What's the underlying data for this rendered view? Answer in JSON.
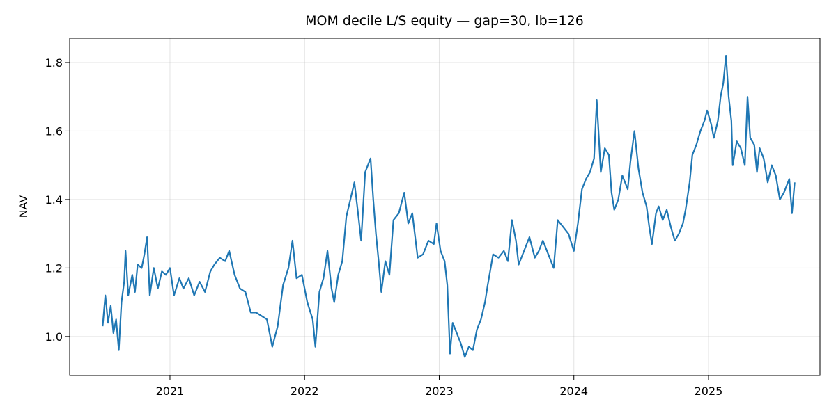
{
  "chart_data": {
    "type": "line",
    "title": "MOM decile L/S equity — gap=30, lb=126",
    "ylabel": "NAV",
    "x": [
      2020.5,
      2020.52,
      2020.54,
      2020.56,
      2020.58,
      2020.6,
      2020.62,
      2020.64,
      2020.66,
      2020.67,
      2020.69,
      2020.72,
      2020.74,
      2020.76,
      2020.79,
      2020.81,
      2020.83,
      2020.85,
      2020.88,
      2020.91,
      2020.94,
      2020.97,
      2021.0,
      2021.03,
      2021.07,
      2021.1,
      2021.14,
      2021.18,
      2021.22,
      2021.26,
      2021.3,
      2021.33,
      2021.37,
      2021.41,
      2021.44,
      2021.48,
      2021.52,
      2021.56,
      2021.6,
      2021.64,
      2021.68,
      2021.72,
      2021.76,
      2021.8,
      2021.84,
      2021.88,
      2021.91,
      2021.94,
      2021.98,
      2022.02,
      2022.06,
      2022.08,
      2022.11,
      2022.14,
      2022.17,
      2022.2,
      2022.22,
      2022.25,
      2022.28,
      2022.31,
      2022.34,
      2022.37,
      2022.4,
      2022.42,
      2022.45,
      2022.49,
      2022.51,
      2022.53,
      2022.55,
      2022.57,
      2022.6,
      2022.63,
      2022.66,
      2022.7,
      2022.74,
      2022.77,
      2022.8,
      2022.84,
      2022.88,
      2022.92,
      2022.96,
      2022.98,
      2023.01,
      2023.04,
      2023.06,
      2023.08,
      2023.1,
      2023.13,
      2023.16,
      2023.19,
      2023.22,
      2023.25,
      2023.28,
      2023.31,
      2023.34,
      2023.36,
      2023.4,
      2023.44,
      2023.48,
      2023.51,
      2023.54,
      2023.57,
      2023.59,
      2023.63,
      2023.67,
      2023.71,
      2023.74,
      2023.77,
      2023.81,
      2023.85,
      2023.88,
      2023.92,
      2023.96,
      2024.0,
      2024.03,
      2024.06,
      2024.09,
      2024.12,
      2024.15,
      2024.17,
      2024.2,
      2024.23,
      2024.26,
      2024.28,
      2024.3,
      2024.33,
      2024.36,
      2024.4,
      2024.42,
      2024.45,
      2024.48,
      2024.51,
      2024.54,
      2024.56,
      2024.58,
      2024.61,
      2024.63,
      2024.66,
      2024.69,
      2024.72,
      2024.75,
      2024.78,
      2024.81,
      2024.83,
      2024.86,
      2024.88,
      2024.91,
      2024.94,
      2024.97,
      2024.99,
      2025.02,
      2025.04,
      2025.07,
      2025.09,
      2025.11,
      2025.13,
      2025.15,
      2025.17,
      2025.18,
      2025.21,
      2025.24,
      2025.27,
      2025.29,
      2025.31,
      2025.34,
      2025.36,
      2025.38,
      2025.41,
      2025.44,
      2025.47,
      2025.5,
      2025.53,
      2025.56,
      2025.6,
      2025.62,
      2025.64
    ],
    "series": [
      {
        "name": "NAV",
        "color": "#1f77b4",
        "values": [
          1.03,
          1.12,
          1.04,
          1.09,
          1.01,
          1.05,
          0.96,
          1.1,
          1.16,
          1.25,
          1.12,
          1.18,
          1.13,
          1.21,
          1.2,
          1.24,
          1.29,
          1.12,
          1.2,
          1.14,
          1.19,
          1.18,
          1.2,
          1.12,
          1.17,
          1.14,
          1.17,
          1.12,
          1.16,
          1.13,
          1.19,
          1.21,
          1.23,
          1.22,
          1.25,
          1.18,
          1.14,
          1.13,
          1.07,
          1.07,
          1.06,
          1.05,
          0.97,
          1.03,
          1.15,
          1.2,
          1.28,
          1.17,
          1.18,
          1.1,
          1.05,
          0.97,
          1.13,
          1.17,
          1.25,
          1.14,
          1.1,
          1.18,
          1.22,
          1.35,
          1.4,
          1.45,
          1.35,
          1.28,
          1.48,
          1.52,
          1.4,
          1.3,
          1.22,
          1.13,
          1.22,
          1.18,
          1.34,
          1.36,
          1.42,
          1.33,
          1.36,
          1.23,
          1.24,
          1.28,
          1.27,
          1.33,
          1.25,
          1.22,
          1.15,
          0.95,
          1.04,
          1.01,
          0.98,
          0.94,
          0.97,
          0.96,
          1.02,
          1.05,
          1.1,
          1.15,
          1.24,
          1.23,
          1.25,
          1.22,
          1.34,
          1.28,
          1.21,
          1.25,
          1.29,
          1.23,
          1.25,
          1.28,
          1.24,
          1.2,
          1.34,
          1.32,
          1.3,
          1.25,
          1.33,
          1.43,
          1.46,
          1.48,
          1.52,
          1.69,
          1.48,
          1.55,
          1.53,
          1.42,
          1.37,
          1.4,
          1.47,
          1.43,
          1.51,
          1.6,
          1.49,
          1.42,
          1.38,
          1.32,
          1.27,
          1.36,
          1.38,
          1.34,
          1.37,
          1.32,
          1.28,
          1.3,
          1.33,
          1.37,
          1.45,
          1.53,
          1.56,
          1.6,
          1.63,
          1.66,
          1.62,
          1.58,
          1.63,
          1.7,
          1.74,
          1.82,
          1.7,
          1.63,
          1.5,
          1.57,
          1.55,
          1.5,
          1.7,
          1.58,
          1.56,
          1.48,
          1.55,
          1.52,
          1.45,
          1.5,
          1.47,
          1.4,
          1.42,
          1.46,
          1.36,
          1.45
        ]
      }
    ],
    "xlim": [
      2020.255,
      2025.828
    ],
    "xticks": [
      2021,
      2022,
      2023,
      2024,
      2025
    ],
    "ylim": [
      0.886,
      1.871
    ],
    "yticks": [
      {
        "value": 1,
        "label": "1.0"
      },
      1.2,
      1.4,
      1.6,
      1.8
    ],
    "grid": true
  }
}
